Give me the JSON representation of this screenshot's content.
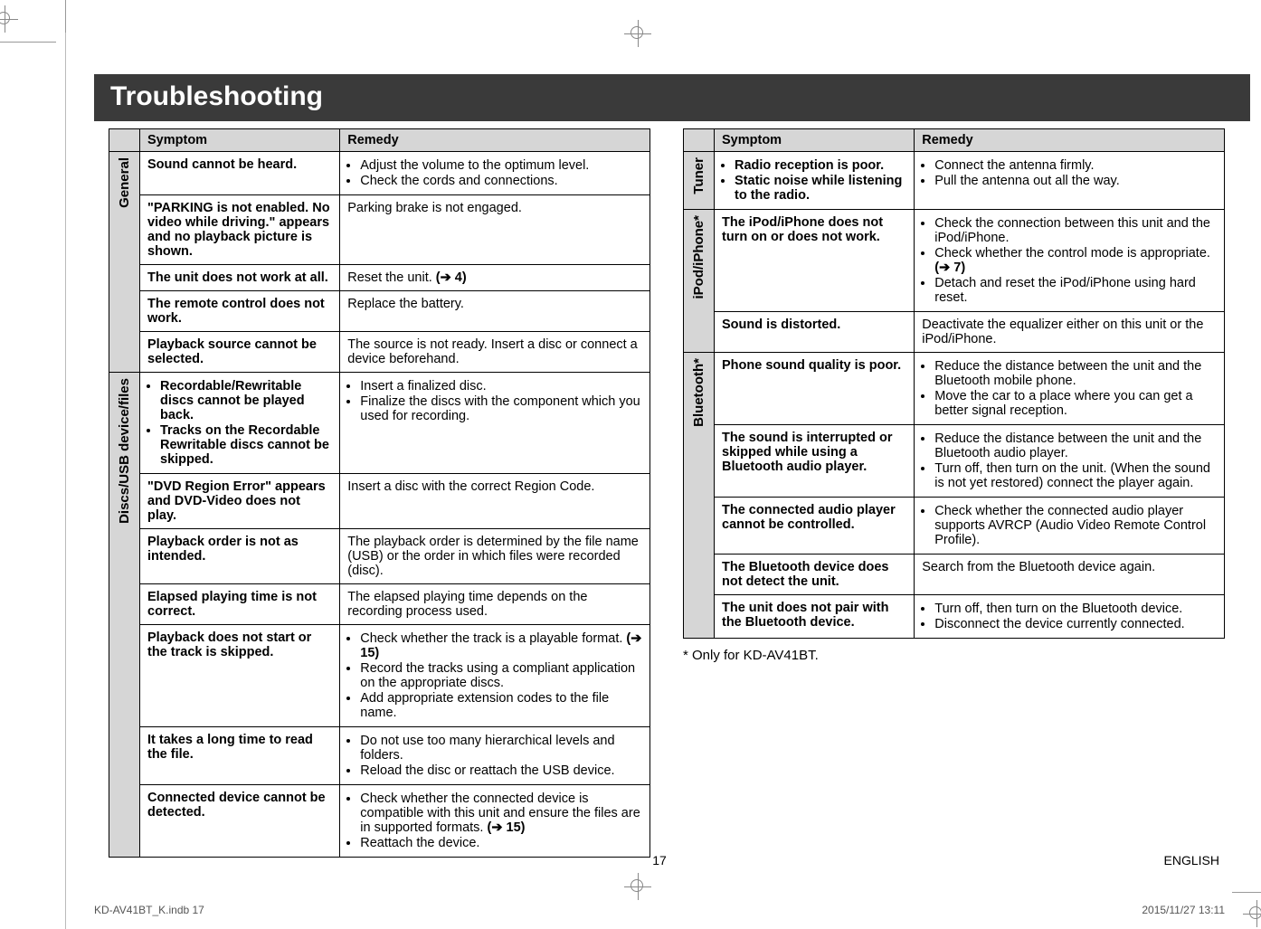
{
  "title": "Troubleshooting",
  "headers": {
    "symptom": "Symptom",
    "remedy": "Remedy"
  },
  "left": {
    "sections": [
      {
        "label": "General",
        "rows": [
          {
            "symptom": "Sound cannot be heard.",
            "remedy_list": [
              "Adjust the volume to the optimum level.",
              "Check the cords and connections."
            ]
          },
          {
            "symptom": "\"PARKING is not enabled. No video while driving.\" appears and no playback picture is shown.",
            "remedy_text": "Parking brake is not engaged."
          },
          {
            "symptom": "The unit does not work at all.",
            "remedy_html": "Reset the unit. <b>(➔ 4)</b>"
          },
          {
            "symptom": "The remote control does not work.",
            "remedy_text": "Replace the battery."
          },
          {
            "symptom": "Playback source cannot be selected.",
            "remedy_text": "The source is not ready. Insert a disc or connect a device beforehand."
          }
        ]
      },
      {
        "label": "Discs/USB device/files",
        "rows": [
          {
            "symptom_list": [
              "Recordable/Rewritable discs cannot be played back.",
              "Tracks on the Recordable Rewritable discs cannot be skipped."
            ],
            "remedy_list": [
              "Insert a finalized disc.",
              "Finalize the discs with the component which you used for recording."
            ]
          },
          {
            "symptom": "\"DVD Region Error\" appears and DVD-Video does not play.",
            "remedy_text": "Insert a disc with the correct Region Code."
          },
          {
            "symptom": "Playback order is not as intended.",
            "remedy_text": "The playback order is determined by the file name (USB) or the order in which files were recorded (disc)."
          },
          {
            "symptom": "Elapsed playing time is not correct.",
            "remedy_text": "The elapsed playing time depends on the recording process used."
          },
          {
            "symptom": "Playback does not start or the track is skipped.",
            "remedy_list": [
              "Check whether the track is a playable format. <b>(➔ 15)</b>",
              "Record the tracks using a compliant application on the appropriate discs.",
              "Add appropriate extension codes to the file name."
            ]
          },
          {
            "symptom": "It takes a long time to read the file.",
            "remedy_list": [
              "Do not use too many hierarchical levels and folders.",
              "Reload the disc or reattach the USB device."
            ]
          },
          {
            "symptom": "Connected device cannot be detected.",
            "remedy_list": [
              "Check whether the connected device is compatible with this unit and ensure the files are in supported formats. <b>(➔ 15)</b>",
              "Reattach the device."
            ]
          }
        ]
      }
    ]
  },
  "right": {
    "sections": [
      {
        "label": "Tuner",
        "rows": [
          {
            "symptom_list": [
              "Radio reception is poor.",
              "Static noise while listening to the radio."
            ],
            "remedy_list": [
              "Connect the antenna firmly.",
              "Pull the antenna out all the way."
            ]
          }
        ]
      },
      {
        "label": "iPod/iPhone*",
        "rows": [
          {
            "symptom": "The iPod/iPhone does not turn on or does not work.",
            "remedy_list": [
              "Check the connection between this unit and the iPod/iPhone.",
              "Check whether the control mode is appropriate. <b>(➔ 7)</b>",
              "Detach and reset the iPod/iPhone using hard reset."
            ]
          },
          {
            "symptom": "Sound is distorted.",
            "remedy_text": "Deactivate the equalizer either on this unit or the iPod/iPhone."
          }
        ]
      },
      {
        "label": "Bluetooth*",
        "rows": [
          {
            "symptom": "Phone sound quality is poor.",
            "remedy_list": [
              "Reduce the distance between the unit and the Bluetooth mobile phone.",
              "Move the car to a place where you can get a better signal reception."
            ]
          },
          {
            "symptom": "The sound is interrupted or skipped while using a Bluetooth audio player.",
            "remedy_list": [
              "Reduce the distance between the unit and the Bluetooth audio player.",
              "Turn off, then turn on the unit. (When the sound is not yet restored) connect the player again."
            ]
          },
          {
            "symptom": "The connected audio player cannot be controlled.",
            "remedy_list": [
              "Check whether the connected audio player supports AVRCP (Audio Video Remote Control Profile)."
            ]
          },
          {
            "symptom": "The Bluetooth device does not detect the unit.",
            "remedy_text": "Search from the Bluetooth device again."
          },
          {
            "symptom": "The unit does not pair with the Bluetooth device.",
            "remedy_list": [
              "Turn off, then turn on the Bluetooth device.",
              "Disconnect the device currently connected."
            ]
          }
        ]
      }
    ],
    "footnote": "* Only for KD-AV41BT."
  },
  "footer": {
    "page": "17",
    "lang": "ENGLISH",
    "file": "KD-AV41BT_K.indb   17",
    "date": "2015/11/27   13:11"
  }
}
